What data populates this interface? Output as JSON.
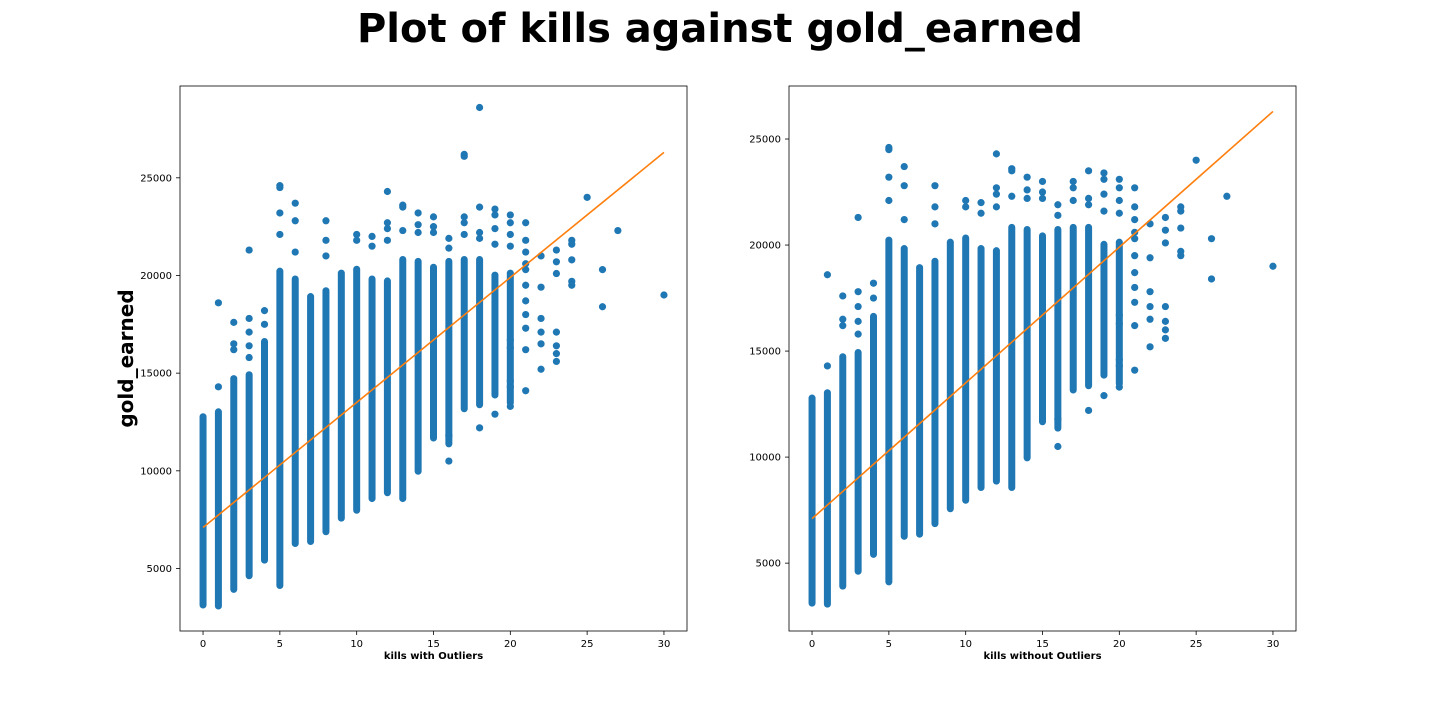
{
  "title": "Plot of kills against gold_earned",
  "colors": {
    "scatter": "#1f77b4",
    "fit_line": "#ff7f0e",
    "axes": "#000000"
  },
  "chart_data": [
    {
      "type": "scatter",
      "xlabel": "kills with Outliers",
      "ylabel": "gold_earned",
      "xlim": [
        -1.5,
        31.5
      ],
      "ylim": [
        1800,
        29700
      ],
      "xticks": [
        0,
        5,
        10,
        15,
        20,
        25,
        30
      ],
      "yticks": [
        5000,
        10000,
        15000,
        20000,
        25000
      ],
      "grid": false,
      "series": [
        {
          "type": "scatter",
          "ranges": [
            {
              "x": 0,
              "min": 2950,
              "max": 12950
            },
            {
              "x": 1,
              "min": 2900,
              "max": 13200
            },
            {
              "x": 2,
              "min": 3750,
              "max": 14900
            },
            {
              "x": 3,
              "min": 4450,
              "max": 15100
            },
            {
              "x": 4,
              "min": 5250,
              "max": 16800
            },
            {
              "x": 5,
              "min": 3950,
              "max": 20400
            },
            {
              "x": 6,
              "min": 6100,
              "max": 20000
            },
            {
              "x": 7,
              "min": 6200,
              "max": 19100
            },
            {
              "x": 8,
              "min": 6700,
              "max": 19400
            },
            {
              "x": 9,
              "min": 7400,
              "max": 20300
            },
            {
              "x": 10,
              "min": 7800,
              "max": 20500
            },
            {
              "x": 11,
              "min": 8400,
              "max": 20000
            },
            {
              "x": 12,
              "min": 8700,
              "max": 19900
            },
            {
              "x": 13,
              "min": 8400,
              "max": 21000
            },
            {
              "x": 14,
              "min": 9800,
              "max": 20900
            },
            {
              "x": 15,
              "min": 11500,
              "max": 20600
            },
            {
              "x": 16,
              "min": 11200,
              "max": 20900
            },
            {
              "x": 17,
              "min": 13000,
              "max": 21000
            },
            {
              "x": 18,
              "min": 13200,
              "max": 21000
            },
            {
              "x": 19,
              "min": 13700,
              "max": 20200
            },
            {
              "x": 20,
              "min": 13300,
              "max": 20300
            }
          ],
          "points": [
            [
              1,
              18600
            ],
            [
              1,
              14300
            ],
            [
              2,
              17600
            ],
            [
              2,
              16500
            ],
            [
              2,
              16200
            ],
            [
              3,
              21300
            ],
            [
              3,
              17800
            ],
            [
              3,
              17100
            ],
            [
              3,
              16400
            ],
            [
              3,
              15800
            ],
            [
              4,
              18200
            ],
            [
              4,
              17500
            ],
            [
              5,
              24600
            ],
            [
              5,
              24500
            ],
            [
              5,
              23200
            ],
            [
              5,
              22100
            ],
            [
              6,
              23700
            ],
            [
              6,
              22800
            ],
            [
              6,
              21200
            ],
            [
              8,
              22800
            ],
            [
              8,
              21800
            ],
            [
              8,
              21000
            ],
            [
              10,
              22100
            ],
            [
              10,
              21800
            ],
            [
              11,
              22000
            ],
            [
              11,
              21500
            ],
            [
              12,
              24300
            ],
            [
              12,
              22700
            ],
            [
              12,
              22400
            ],
            [
              12,
              21800
            ],
            [
              13,
              23600
            ],
            [
              13,
              23500
            ],
            [
              13,
              22300
            ],
            [
              14,
              23200
            ],
            [
              14,
              22600
            ],
            [
              14,
              22200
            ],
            [
              15,
              23000
            ],
            [
              15,
              22500
            ],
            [
              15,
              22200
            ],
            [
              16,
              21900
            ],
            [
              16,
              21400
            ],
            [
              16,
              10500
            ],
            [
              16,
              11800
            ],
            [
              17,
              26200
            ],
            [
              17,
              26100
            ],
            [
              17,
              23000
            ],
            [
              17,
              22700
            ],
            [
              17,
              22100
            ],
            [
              18,
              28600
            ],
            [
              18,
              23500
            ],
            [
              18,
              22200
            ],
            [
              18,
              21900
            ],
            [
              18,
              12200
            ],
            [
              19,
              23400
            ],
            [
              19,
              23100
            ],
            [
              19,
              22400
            ],
            [
              19,
              21600
            ],
            [
              19,
              12900
            ],
            [
              20,
              23100
            ],
            [
              20,
              22700
            ],
            [
              20,
              22100
            ],
            [
              20,
              21500
            ],
            [
              20,
              13300
            ],
            [
              20,
              14300
            ],
            [
              20,
              14600
            ],
            [
              20,
              16300
            ],
            [
              20,
              16700
            ],
            [
              21,
              22700
            ],
            [
              21,
              21800
            ],
            [
              21,
              21200
            ],
            [
              21,
              20600
            ],
            [
              21,
              20300
            ],
            [
              21,
              19500
            ],
            [
              21,
              18700
            ],
            [
              21,
              18000
            ],
            [
              21,
              17300
            ],
            [
              21,
              16200
            ],
            [
              21,
              14100
            ],
            [
              22,
              21000
            ],
            [
              22,
              19400
            ],
            [
              22,
              17800
            ],
            [
              22,
              17100
            ],
            [
              22,
              16500
            ],
            [
              22,
              15200
            ],
            [
              23,
              21300
            ],
            [
              23,
              20700
            ],
            [
              23,
              20100
            ],
            [
              23,
              17100
            ],
            [
              23,
              16400
            ],
            [
              23,
              16000
            ],
            [
              23,
              15600
            ],
            [
              24,
              21800
            ],
            [
              24,
              21600
            ],
            [
              24,
              20800
            ],
            [
              24,
              19700
            ],
            [
              24,
              19500
            ],
            [
              25,
              24000
            ],
            [
              26,
              20300
            ],
            [
              26,
              18400
            ],
            [
              27,
              22300
            ],
            [
              30,
              19000
            ]
          ]
        },
        {
          "type": "line",
          "x": [
            0,
            30
          ],
          "y": [
            7100,
            26300
          ]
        }
      ]
    },
    {
      "type": "scatter",
      "xlabel": "kills without Outliers",
      "ylabel": "",
      "xlim": [
        -1.5,
        31.5
      ],
      "ylim": [
        1800,
        27500
      ],
      "xticks": [
        0,
        5,
        10,
        15,
        20,
        25,
        30
      ],
      "yticks": [
        5000,
        10000,
        15000,
        20000,
        25000
      ],
      "grid": false,
      "series": [
        {
          "type": "scatter",
          "ranges": [
            {
              "x": 0,
              "min": 2950,
              "max": 12950
            },
            {
              "x": 1,
              "min": 2900,
              "max": 13200
            },
            {
              "x": 2,
              "min": 3750,
              "max": 14900
            },
            {
              "x": 3,
              "min": 4450,
              "max": 15100
            },
            {
              "x": 4,
              "min": 5250,
              "max": 16800
            },
            {
              "x": 5,
              "min": 3950,
              "max": 20400
            },
            {
              "x": 6,
              "min": 6100,
              "max": 20000
            },
            {
              "x": 7,
              "min": 6200,
              "max": 19100
            },
            {
              "x": 8,
              "min": 6700,
              "max": 19400
            },
            {
              "x": 9,
              "min": 7400,
              "max": 20300
            },
            {
              "x": 10,
              "min": 7800,
              "max": 20500
            },
            {
              "x": 11,
              "min": 8400,
              "max": 20000
            },
            {
              "x": 12,
              "min": 8700,
              "max": 19900
            },
            {
              "x": 13,
              "min": 8400,
              "max": 21000
            },
            {
              "x": 14,
              "min": 9800,
              "max": 20900
            },
            {
              "x": 15,
              "min": 11500,
              "max": 20600
            },
            {
              "x": 16,
              "min": 11200,
              "max": 20900
            },
            {
              "x": 17,
              "min": 13000,
              "max": 21000
            },
            {
              "x": 18,
              "min": 13200,
              "max": 21000
            },
            {
              "x": 19,
              "min": 13700,
              "max": 20200
            },
            {
              "x": 20,
              "min": 13300,
              "max": 20300
            }
          ],
          "points": [
            [
              1,
              18600
            ],
            [
              1,
              14300
            ],
            [
              2,
              17600
            ],
            [
              2,
              16500
            ],
            [
              2,
              16200
            ],
            [
              3,
              21300
            ],
            [
              3,
              17800
            ],
            [
              3,
              17100
            ],
            [
              3,
              16400
            ],
            [
              3,
              15800
            ],
            [
              4,
              18200
            ],
            [
              4,
              17500
            ],
            [
              5,
              24600
            ],
            [
              5,
              24500
            ],
            [
              5,
              23200
            ],
            [
              5,
              22100
            ],
            [
              6,
              23700
            ],
            [
              6,
              22800
            ],
            [
              6,
              21200
            ],
            [
              8,
              22800
            ],
            [
              8,
              21800
            ],
            [
              8,
              21000
            ],
            [
              10,
              22100
            ],
            [
              10,
              21800
            ],
            [
              11,
              22000
            ],
            [
              11,
              21500
            ],
            [
              12,
              24300
            ],
            [
              12,
              22700
            ],
            [
              12,
              22400
            ],
            [
              12,
              21800
            ],
            [
              13,
              23600
            ],
            [
              13,
              23500
            ],
            [
              13,
              22300
            ],
            [
              14,
              23200
            ],
            [
              14,
              22600
            ],
            [
              14,
              22200
            ],
            [
              15,
              23000
            ],
            [
              15,
              22500
            ],
            [
              15,
              22200
            ],
            [
              16,
              21900
            ],
            [
              16,
              21400
            ],
            [
              16,
              10500
            ],
            [
              16,
              11800
            ],
            [
              17,
              23000
            ],
            [
              17,
              22700
            ],
            [
              17,
              22100
            ],
            [
              18,
              23500
            ],
            [
              18,
              22200
            ],
            [
              18,
              21900
            ],
            [
              18,
              12200
            ],
            [
              19,
              23400
            ],
            [
              19,
              23100
            ],
            [
              19,
              22400
            ],
            [
              19,
              21600
            ],
            [
              19,
              12900
            ],
            [
              20,
              23100
            ],
            [
              20,
              22700
            ],
            [
              20,
              22100
            ],
            [
              20,
              21500
            ],
            [
              20,
              13300
            ],
            [
              20,
              14300
            ],
            [
              20,
              14600
            ],
            [
              20,
              16300
            ],
            [
              20,
              16700
            ],
            [
              21,
              22700
            ],
            [
              21,
              21800
            ],
            [
              21,
              21200
            ],
            [
              21,
              20600
            ],
            [
              21,
              20300
            ],
            [
              21,
              19500
            ],
            [
              21,
              18700
            ],
            [
              21,
              18000
            ],
            [
              21,
              17300
            ],
            [
              21,
              16200
            ],
            [
              21,
              14100
            ],
            [
              22,
              21000
            ],
            [
              22,
              19400
            ],
            [
              22,
              17800
            ],
            [
              22,
              17100
            ],
            [
              22,
              16500
            ],
            [
              22,
              15200
            ],
            [
              23,
              21300
            ],
            [
              23,
              20700
            ],
            [
              23,
              20100
            ],
            [
              23,
              17100
            ],
            [
              23,
              16400
            ],
            [
              23,
              16000
            ],
            [
              23,
              15600
            ],
            [
              24,
              21800
            ],
            [
              24,
              21600
            ],
            [
              24,
              20800
            ],
            [
              24,
              19700
            ],
            [
              24,
              19500
            ],
            [
              25,
              24000
            ],
            [
              26,
              20300
            ],
            [
              26,
              18400
            ],
            [
              27,
              22300
            ],
            [
              30,
              19000
            ]
          ]
        },
        {
          "type": "line",
          "x": [
            0,
            30
          ],
          "y": [
            7100,
            26300
          ]
        }
      ]
    }
  ]
}
